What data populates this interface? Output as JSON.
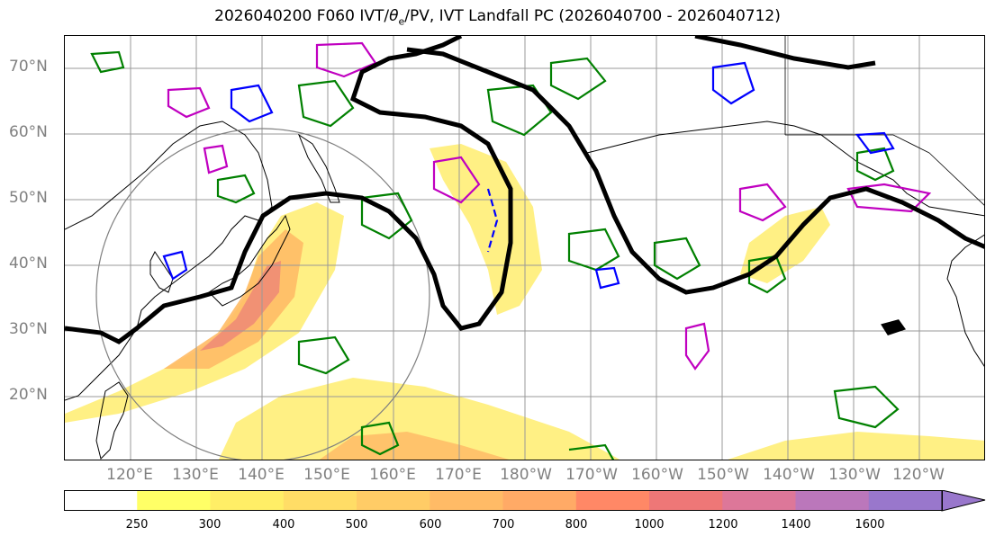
{
  "title_prefix": "2026040200 F060 IVT/",
  "title_theta": "θ",
  "title_e": "e",
  "title_suffix": "/PV, IVT Landfall PC (2026040700 - 2026040712)",
  "lat_labels": [
    "70°N",
    "60°N",
    "50°N",
    "40°N",
    "30°N",
    "20°N"
  ],
  "lon_labels": [
    "120°E",
    "130°E",
    "140°E",
    "150°E",
    "160°E",
    "170°E",
    "180°W",
    "170°W",
    "160°W",
    "150°W",
    "140°W",
    "130°W",
    "120°W"
  ],
  "colorbar": {
    "levels": [
      "250",
      "300",
      "400",
      "500",
      "600",
      "700",
      "800",
      "1000",
      "1200",
      "1400",
      "1600"
    ],
    "colors": [
      "#ffffff",
      "#ffff66",
      "#ffee66",
      "#ffdd66",
      "#ffcc66",
      "#ffbb66",
      "#ffaa66",
      "#ff8866",
      "#ee7777",
      "#dd7799",
      "#bb77bb",
      "#9977cc"
    ]
  },
  "style": {
    "ivt_fill": "#ffcc66",
    "ivt_core": "#f07070",
    "pv_line": "#000000",
    "theta_e_pos": "#008000",
    "pv_pos": "#c000c0",
    "pv_neg": "#0000ff",
    "circle": "#808080"
  }
}
